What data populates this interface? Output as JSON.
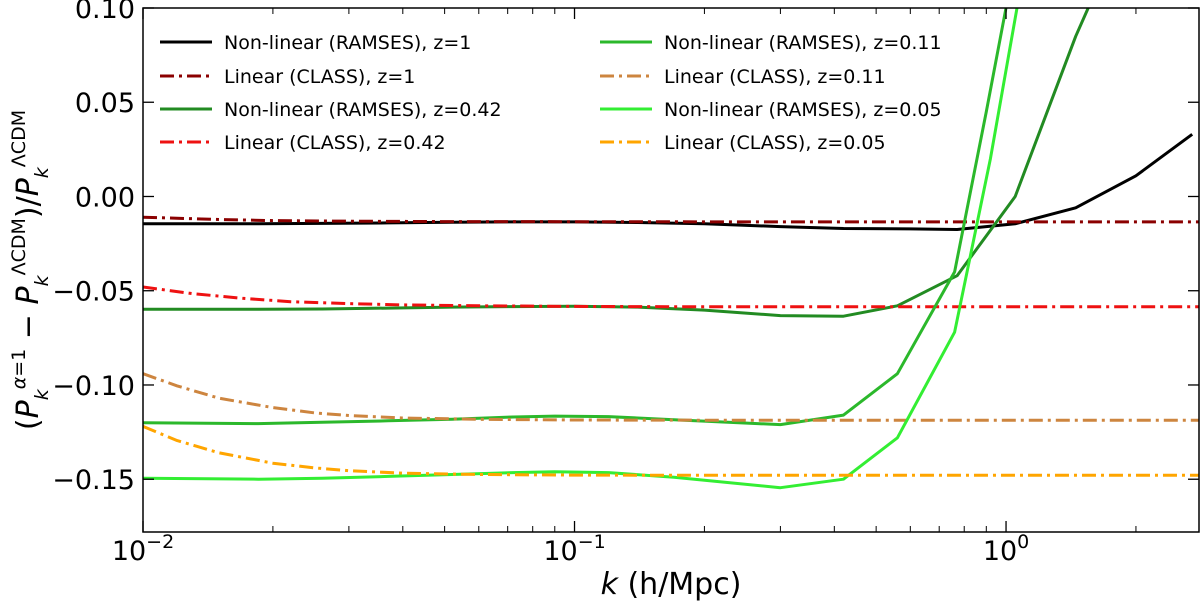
{
  "chart_data": {
    "type": "line",
    "title": "",
    "xlabel": "k  (h/Mpc)",
    "ylabel": "(P_k^{α=1} − P_k^{ΛCDM}) / P_k^{ΛCDM}",
    "xscale": "log",
    "xlim": [
      0.01,
      2.8
    ],
    "ylim": [
      -0.178,
      0.1
    ],
    "grid": false,
    "legend_position": "top (two columns)",
    "xticks": [
      {
        "value": 0.01,
        "base": "10",
        "exp": "−2"
      },
      {
        "value": 0.1,
        "base": "10",
        "exp": "−1"
      },
      {
        "value": 1,
        "base": "10",
        "exp": "0"
      }
    ],
    "yticks": [
      {
        "value": 0.1,
        "label": "0.10"
      },
      {
        "value": 0.05,
        "label": "0.05"
      },
      {
        "value": 0.0,
        "label": "0.00"
      },
      {
        "value": -0.05,
        "label": "−0.05"
      },
      {
        "value": -0.1,
        "label": "−0.10"
      },
      {
        "value": -0.15,
        "label": "−0.15"
      }
    ],
    "series": [
      {
        "name": "Non-linear (RAMSES), z=1",
        "color": "#000000",
        "dash": "solid",
        "x": [
          0.01,
          0.0185,
          0.026,
          0.037,
          0.052,
          0.072,
          0.1,
          0.14,
          0.2,
          0.3,
          0.42,
          0.6,
          0.77,
          1.05,
          1.45,
          2.0,
          2.7
        ],
        "y": [
          -0.0145,
          -0.0145,
          -0.0143,
          -0.014,
          -0.0137,
          -0.0135,
          -0.0135,
          -0.0138,
          -0.0145,
          -0.016,
          -0.017,
          -0.0172,
          -0.0175,
          -0.0145,
          -0.006,
          0.011,
          0.033
        ]
      },
      {
        "name": "Linear (CLASS), z=1",
        "color": "#8b0000",
        "dash": "dashdot",
        "x": [
          0.01,
          0.015,
          0.02,
          0.03,
          0.05,
          0.1,
          0.3,
          1,
          2.8
        ],
        "y": [
          -0.011,
          -0.0122,
          -0.0128,
          -0.0131,
          -0.0133,
          -0.0134,
          -0.0135,
          -0.0135,
          -0.0135
        ]
      },
      {
        "name": "Non-linear (RAMSES), z=0.42",
        "color": "#228b22",
        "dash": "solid",
        "x": [
          0.01,
          0.0185,
          0.026,
          0.037,
          0.052,
          0.072,
          0.1,
          0.14,
          0.2,
          0.3,
          0.42,
          0.56,
          0.77,
          1.05,
          1.45,
          1.55
        ],
        "y": [
          -0.0598,
          -0.0598,
          -0.0597,
          -0.0592,
          -0.0587,
          -0.0584,
          -0.0582,
          -0.0587,
          -0.0603,
          -0.0632,
          -0.0635,
          -0.058,
          -0.042,
          0.0,
          0.085,
          0.1
        ]
      },
      {
        "name": "Linear (CLASS), z=0.42",
        "color": "#ee1111",
        "dash": "dashdot",
        "x": [
          0.01,
          0.013,
          0.017,
          0.022,
          0.03,
          0.04,
          0.06,
          0.1,
          0.2,
          0.5,
          1,
          2.8
        ],
        "y": [
          -0.048,
          -0.0515,
          -0.054,
          -0.0558,
          -0.0568,
          -0.0575,
          -0.058,
          -0.0583,
          -0.0585,
          -0.0585,
          -0.0585,
          -0.0585
        ]
      },
      {
        "name": "Non-linear (RAMSES), z=0.11",
        "color": "#2bb82b",
        "dash": "solid",
        "x": [
          0.01,
          0.0185,
          0.026,
          0.037,
          0.052,
          0.072,
          0.09,
          0.12,
          0.17,
          0.3,
          0.42,
          0.56,
          0.76,
          0.9,
          1.0
        ],
        "y": [
          -0.12,
          -0.1205,
          -0.1198,
          -0.119,
          -0.1182,
          -0.117,
          -0.1165,
          -0.1168,
          -0.1185,
          -0.121,
          -0.116,
          -0.094,
          -0.04,
          0.045,
          0.1
        ]
      },
      {
        "name": "Linear (CLASS), z=0.11",
        "color": "#cd853f",
        "dash": "dashdot",
        "x": [
          0.01,
          0.012,
          0.015,
          0.02,
          0.025,
          0.03,
          0.04,
          0.06,
          0.1,
          0.2,
          0.5,
          1,
          2.8
        ],
        "y": [
          -0.094,
          -0.1005,
          -0.107,
          -0.112,
          -0.1148,
          -0.1162,
          -0.1175,
          -0.1182,
          -0.1186,
          -0.1187,
          -0.1187,
          -0.1187,
          -0.1187
        ]
      },
      {
        "name": "Non-linear (RAMSES), z=0.05",
        "color": "#33ee33",
        "dash": "solid",
        "x": [
          0.01,
          0.0185,
          0.026,
          0.037,
          0.052,
          0.072,
          0.09,
          0.12,
          0.17,
          0.3,
          0.42,
          0.56,
          0.76,
          0.92,
          1.06
        ],
        "y": [
          -0.1495,
          -0.15,
          -0.1495,
          -0.1485,
          -0.1475,
          -0.1465,
          -0.146,
          -0.1465,
          -0.149,
          -0.1545,
          -0.15,
          -0.128,
          -0.072,
          0.02,
          0.1
        ]
      },
      {
        "name": "Linear (CLASS), z=0.05",
        "color": "#ffa500",
        "dash": "dashdot",
        "x": [
          0.01,
          0.012,
          0.015,
          0.02,
          0.025,
          0.03,
          0.04,
          0.06,
          0.1,
          0.2,
          0.5,
          1,
          2.8
        ],
        "y": [
          -0.122,
          -0.1295,
          -0.136,
          -0.1415,
          -0.144,
          -0.1455,
          -0.1468,
          -0.1475,
          -0.1478,
          -0.1479,
          -0.1479,
          -0.1479,
          -0.1479
        ]
      }
    ]
  }
}
